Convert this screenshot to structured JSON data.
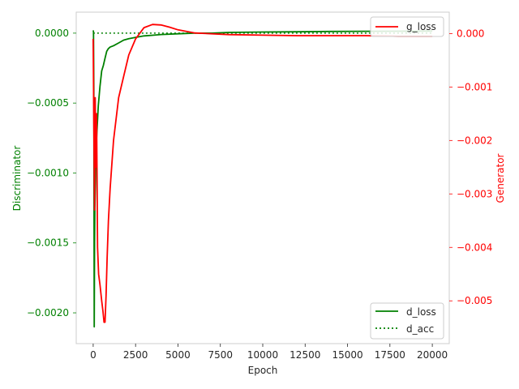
{
  "chart_data": {
    "type": "line",
    "xlabel": "Epoch",
    "ylabel_left": "Discriminator",
    "ylabel_right": "Generator",
    "xlim": [
      -1000,
      21000
    ],
    "ylim_left": [
      -0.00222,
      0.00015
    ],
    "ylim_right": [
      -0.0058,
      0.0004
    ],
    "grid": false,
    "x_ticks": [
      0,
      2500,
      5000,
      7500,
      10000,
      12500,
      15000,
      17500,
      20000
    ],
    "x_tick_labels": [
      "0",
      "2500",
      "5000",
      "7500",
      "10000",
      "12500",
      "15000",
      "17500",
      "20000"
    ],
    "left_ticks": [
      0.0,
      -0.0005,
      -0.001,
      -0.0015,
      -0.002
    ],
    "left_tick_labels": [
      "0.0000",
      "−0.0005",
      "−0.0010",
      "−0.0015",
      "−0.0020"
    ],
    "right_ticks": [
      0.0,
      -0.001,
      -0.002,
      -0.003,
      -0.004,
      -0.005
    ],
    "right_tick_labels": [
      "0.000",
      "−0.001",
      "−0.002",
      "−0.003",
      "−0.004",
      "−0.005"
    ],
    "colors": {
      "left_axis": "#008000",
      "right_axis": "#ff0000",
      "spine": "#cccccc"
    },
    "legend_right": {
      "position": "upper right",
      "entries": [
        {
          "name": "g_loss",
          "color": "#ff0000",
          "style": "solid"
        }
      ]
    },
    "legend_left": {
      "position": "lower right",
      "entries": [
        {
          "name": "d_loss",
          "color": "#008000",
          "style": "solid"
        },
        {
          "name": "d_acc",
          "color": "#008000",
          "style": "dotted"
        }
      ]
    },
    "series": [
      {
        "name": "d_loss",
        "axis": "left",
        "color": "#008000",
        "style": "solid",
        "x": [
          0,
          20,
          40,
          60,
          80,
          100,
          150,
          200,
          300,
          400,
          500,
          600,
          700,
          800,
          900,
          1000,
          1200,
          1500,
          1800,
          2100,
          2500,
          3000,
          3500,
          4000,
          5000,
          6000,
          7000,
          8000,
          10000,
          12000,
          14000,
          16000,
          18000,
          20000
        ],
        "y": [
          2e-05,
          1e-05,
          -0.0004,
          -0.0021,
          -0.0015,
          -0.00125,
          -0.00095,
          -0.00075,
          -0.00052,
          -0.00038,
          -0.00027,
          -0.00023,
          -0.00018,
          -0.00013,
          -0.00011,
          -0.0001,
          -9e-05,
          -7e-05,
          -5e-05,
          -4e-05,
          -3e-05,
          -2e-05,
          -1.5e-05,
          -1e-05,
          -5e-06,
          0.0,
          0.0,
          5e-06,
          8e-06,
          1e-05,
          1.2e-05,
          1.3e-05,
          1.4e-05,
          1.5e-05
        ]
      },
      {
        "name": "d_acc",
        "axis": "left",
        "color": "#008000",
        "style": "dotted",
        "x": [
          0,
          20000
        ],
        "y": [
          1e-07,
          1e-07
        ]
      },
      {
        "name": "g_loss",
        "axis": "right",
        "color": "#ff0000",
        "style": "solid",
        "x": [
          0,
          40,
          80,
          120,
          160,
          200,
          260,
          320,
          400,
          500,
          580,
          640,
          700,
          760,
          820,
          900,
          1000,
          1200,
          1500,
          1800,
          2100,
          2500,
          3000,
          3500,
          4000,
          4500,
          5000,
          6000,
          8000,
          10000,
          12000,
          14000,
          16000,
          18000,
          20000
        ],
        "y": [
          -0.0001,
          -0.0017,
          -0.0033,
          -0.0012,
          -0.0025,
          -0.0015,
          -0.004,
          -0.0045,
          -0.0047,
          -0.005,
          -0.0052,
          -0.0054,
          -0.0054,
          -0.0049,
          -0.0042,
          -0.0035,
          -0.0029,
          -0.002,
          -0.0012,
          -0.0008,
          -0.0004,
          -0.0001,
          0.00011,
          0.00017,
          0.00016,
          0.00012,
          7e-05,
          1e-05,
          -2e-05,
          -3e-05,
          -4e-05,
          -4e-05,
          -4e-05,
          -5e-05,
          -5e-05
        ]
      }
    ]
  }
}
